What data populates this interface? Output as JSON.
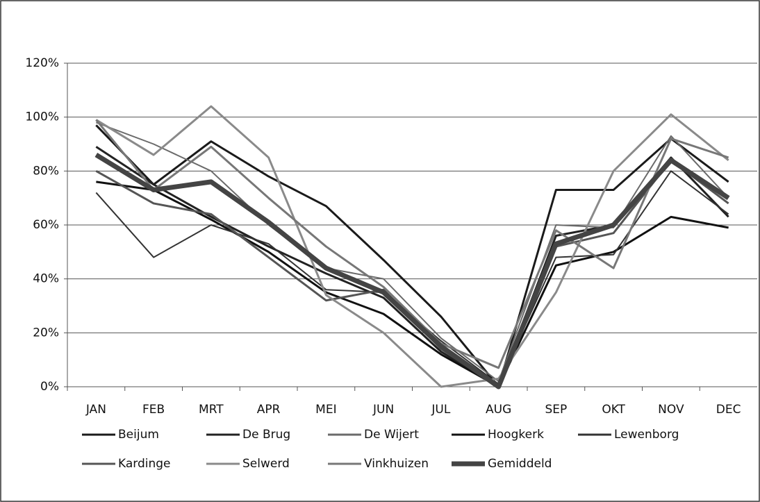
{
  "chart_data": {
    "type": "line",
    "categories": [
      "JAN",
      "FEB",
      "MRT",
      "APR",
      "MEI",
      "JUN",
      "JUL",
      "AUG",
      "SEP",
      "OKT",
      "NOV",
      "DEC"
    ],
    "series": [
      {
        "name": "Beijum",
        "color": "#1a1a1a",
        "width": 3,
        "values": [
          97,
          75,
          91,
          78,
          67,
          47,
          26,
          0,
          73,
          73,
          92,
          76
        ]
      },
      {
        "name": "De Brug",
        "color": "#222222",
        "width": 3,
        "values": [
          89,
          75,
          63,
          52,
          42,
          33,
          13,
          0,
          56,
          60,
          85,
          63
        ]
      },
      {
        "name": "De Wijert",
        "color": "#6a6a6a",
        "width": 2,
        "values": [
          98,
          90,
          80,
          60,
          44,
          40,
          18,
          2,
          60,
          59,
          93,
          70
        ]
      },
      {
        "name": "Hoogkerk",
        "color": "#111111",
        "width": 3,
        "values": [
          76,
          73,
          62,
          50,
          35,
          27,
          12,
          0,
          45,
          50,
          63,
          59
        ]
      },
      {
        "name": "Lewenborg",
        "color": "#333333",
        "width": 2,
        "values": [
          72,
          48,
          60,
          53,
          36,
          35,
          17,
          1,
          48,
          49,
          80,
          64
        ]
      },
      {
        "name": "Kardinge",
        "color": "#555555",
        "width": 3,
        "values": [
          80,
          68,
          64,
          48,
          32,
          36,
          14,
          0,
          52,
          57,
          84,
          68
        ]
      },
      {
        "name": "Selwerd",
        "color": "#8a8a8a",
        "width": 3,
        "values": [
          99,
          86,
          104,
          85,
          34,
          20,
          0,
          3,
          35,
          80,
          101,
          84
        ]
      },
      {
        "name": "Vinkhuizen",
        "color": "#777777",
        "width": 3,
        "values": [
          99,
          73,
          89,
          70,
          52,
          37,
          16,
          7,
          58,
          44,
          92,
          85
        ]
      },
      {
        "name": "Gemiddeld",
        "color": "#444444",
        "width": 7,
        "values": [
          86,
          73,
          76,
          61,
          44,
          35,
          15,
          0,
          53,
          60,
          84,
          70
        ]
      }
    ],
    "ylim": [
      0,
      120
    ],
    "yticks": [
      {
        "value": 0,
        "label": "0%"
      },
      {
        "value": 20,
        "label": "20%"
      },
      {
        "value": 40,
        "label": "40%"
      },
      {
        "value": 60,
        "label": "60%"
      },
      {
        "value": 80,
        "label": "80%"
      },
      {
        "value": 100,
        "label": "100%"
      },
      {
        "value": 120,
        "label": "120%"
      }
    ],
    "grid": true
  }
}
